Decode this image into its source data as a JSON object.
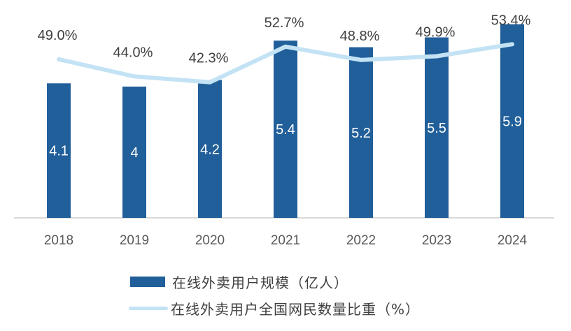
{
  "chart_data": {
    "type": "bar",
    "title": "",
    "xlabel": "",
    "ylabel": "",
    "categories": [
      "2018",
      "2019",
      "2020",
      "2021",
      "2022",
      "2023",
      "2024"
    ],
    "series": [
      {
        "name": "在线外卖用户规模（亿人）",
        "type": "bar",
        "axis": "left",
        "color": "#215f9a",
        "values": [
          4.1,
          4,
          4.2,
          5.4,
          5.2,
          5.5,
          5.9
        ],
        "labels": [
          "4.1",
          "4",
          "4.2",
          "5.4",
          "5.2",
          "5.5",
          "5.9"
        ]
      },
      {
        "name": "在线外卖用户全国网民数量比重（%）",
        "type": "line",
        "axis": "right",
        "color": "#c3e3f5",
        "values": [
          49.0,
          44.0,
          42.3,
          52.7,
          48.8,
          49.9,
          53.4
        ],
        "labels": [
          "49.0%",
          "44.0%",
          "42.3%",
          "52.7%",
          "48.8%",
          "49.9%",
          "53.4%"
        ]
      }
    ],
    "grid": false,
    "legend_position": "bottom"
  },
  "legend": {
    "bar_label": "在线外卖用户规模（亿人）",
    "line_label": "在线外卖用户全国网民数量比重（%）"
  }
}
